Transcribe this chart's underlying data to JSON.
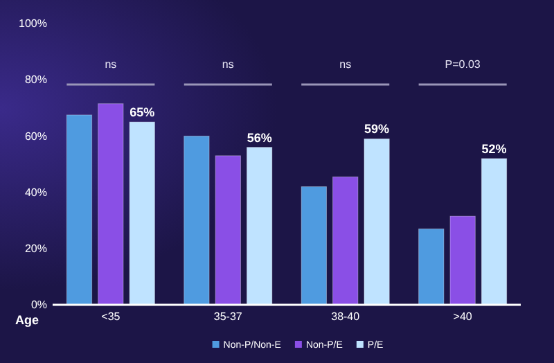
{
  "chart_data": {
    "type": "bar",
    "xlabel": "Age",
    "categories": [
      "<35",
      "35-37",
      "38-40",
      ">40"
    ],
    "series": [
      {
        "name": "Non-P/Non-E",
        "color": "#4f9be0",
        "values": [
          67.5,
          60,
          42,
          27
        ]
      },
      {
        "name": "Non-P/E",
        "color": "#8a4fe6",
        "values": [
          71.5,
          53,
          45.5,
          31.5
        ]
      },
      {
        "name": "P/E",
        "color": "#bfe3ff",
        "values": [
          65,
          56,
          59,
          52
        ],
        "value_labels": [
          "65%",
          "56%",
          "59%",
          "52%"
        ]
      }
    ],
    "ylim": [
      0,
      100
    ],
    "yticks": [
      {
        "value": 0,
        "label": "0%"
      },
      {
        "value": 20,
        "label": "20%"
      },
      {
        "value": 40,
        "label": "40%"
      },
      {
        "value": 60,
        "label": "60%"
      },
      {
        "value": 80,
        "label": "80%"
      },
      {
        "value": 100,
        "label": "100%"
      }
    ],
    "annotations": [
      "ns",
      "ns",
      "ns",
      "P=0.03"
    ],
    "legend": "bottom"
  }
}
